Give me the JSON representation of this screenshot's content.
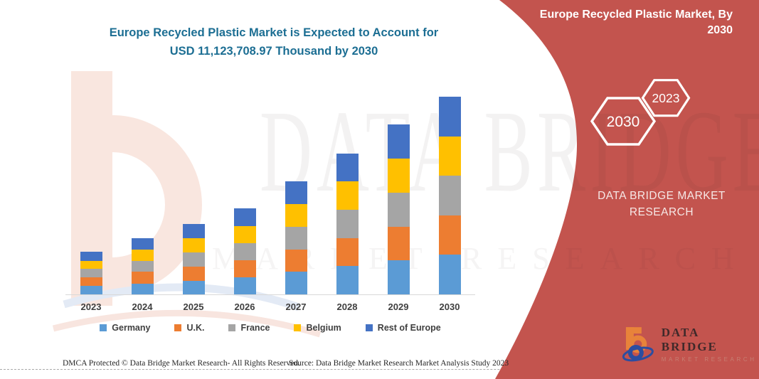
{
  "page": {
    "title_line1": "Europe Recycled Plastic Market is Expected to Account for",
    "title_line2": "USD 11,123,708.97 Thousand by 2030"
  },
  "banner": {
    "title_line1": "Europe Recycled Plastic Market, By",
    "title_line2": "2030",
    "hexagon_left": "2030",
    "hexagon_right": "2023",
    "brand_text": "DATA BRIDGE MARKET RESEARCH",
    "color": "#c3544e"
  },
  "watermark": {
    "big_text": "DATA BRIDGE",
    "sub_text": "MARKET RESEARCH"
  },
  "logo": {
    "name": "DATA BRIDGE",
    "tagline": "MARKET RESEARCH"
  },
  "footer": {
    "dmca": "DMCA Protected © Data Bridge Market Research- All Rights Reserved.",
    "source": "Source: Data Bridge Market Research Market Analysis Study 2023"
  },
  "chart_data": {
    "type": "bar",
    "stacked": true,
    "title": "Europe Recycled Plastic Market is Expected to Account for USD 11,123,708.97 Thousand by 2030",
    "unit": "USD Thousand",
    "categories": [
      "2023",
      "2024",
      "2025",
      "2026",
      "2027",
      "2028",
      "2029",
      "2030"
    ],
    "series": [
      {
        "name": "Germany",
        "color": "#5b9bd5",
        "values": [
          470000,
          620000,
          780000,
          950000,
          1270000,
          1590000,
          1910000,
          2230000
        ]
      },
      {
        "name": "U.K.",
        "color": "#ed7d31",
        "values": [
          510000,
          650000,
          800000,
          975000,
          1270000,
          1590000,
          1910000,
          2220000
        ]
      },
      {
        "name": "France",
        "color": "#a5a5a5",
        "values": [
          460000,
          620000,
          790000,
          960000,
          1265000,
          1585000,
          1915000,
          2225000
        ]
      },
      {
        "name": "Belgium",
        "color": "#ffc000",
        "values": [
          440000,
          615000,
          785000,
          965000,
          1275000,
          1590000,
          1905000,
          2225000
        ]
      },
      {
        "name": "Rest of Europe",
        "color": "#4472c4",
        "values": [
          520000,
          655000,
          805000,
          990000,
          1280000,
          1585000,
          1920000,
          2223709
        ]
      }
    ],
    "ylim": [
      0,
      11500000
    ],
    "legend_position": "bottom",
    "gridlines": false,
    "y_axis_visible": false,
    "x_axis_line_color": "#d9d9d9"
  }
}
